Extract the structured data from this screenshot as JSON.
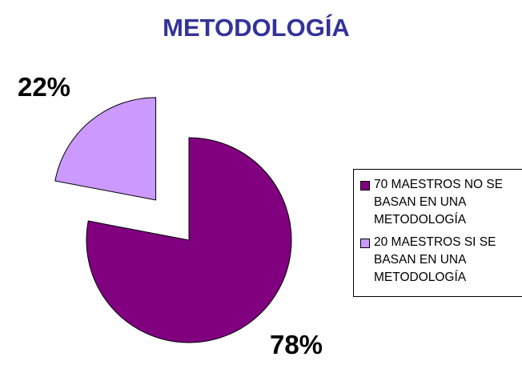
{
  "chart_data": {
    "type": "pie",
    "title": "METODOLOGÍA",
    "categories": [
      "70 MAESTROS NO SE BASAN EN UNA METODOLOGÍA",
      "20 MAESTROS SI SE BASAN EN UNA METODOLOGÍA"
    ],
    "values": [
      78,
      22
    ],
    "value_labels": [
      "78%",
      "22%"
    ],
    "colors": [
      "#800080",
      "#cc99ff"
    ],
    "legend": "right"
  }
}
